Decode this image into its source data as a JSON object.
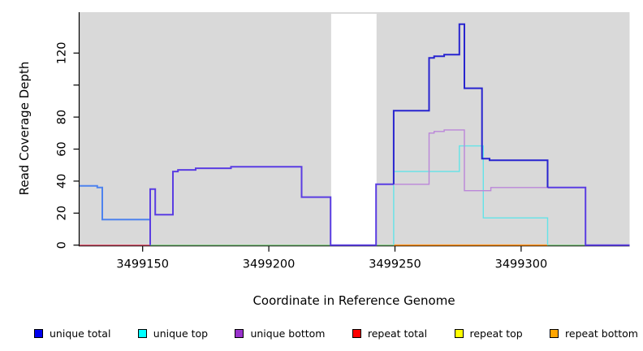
{
  "chart_data": {
    "type": "line",
    "subtype": "step-coverage",
    "title": "",
    "xlabel": "Coordinate in Reference Genome",
    "ylabel": "Read Coverage Depth",
    "xlim": [
      3499125,
      3499343
    ],
    "ylim": [
      0,
      145
    ],
    "grid": "off",
    "plot_bg_color": "#d9d9d9",
    "gap_region": {
      "x0": 3499224.7,
      "x1": 3499242.7,
      "color": "#ffffff"
    },
    "x_ticks": [
      {
        "v": 3499150,
        "label": "3499150"
      },
      {
        "v": 3499200,
        "label": "3499200"
      },
      {
        "v": 3499250,
        "label": "3499250"
      },
      {
        "v": 3499300,
        "label": "3499300"
      }
    ],
    "y_ticks": [
      {
        "v": 0,
        "label": "0"
      },
      {
        "v": 20,
        "label": "20"
      },
      {
        "v": 40,
        "label": "40"
      },
      {
        "v": 60,
        "label": "60"
      },
      {
        "v": 80,
        "label": "80"
      },
      {
        "v": 100,
        "label": ""
      },
      {
        "v": 120,
        "label": "120"
      }
    ],
    "series": [
      {
        "name": "unique total",
        "color": "#0000ee",
        "points": [
          [
            3499125,
            37
          ],
          [
            3499132,
            37
          ],
          [
            3499132,
            36
          ],
          [
            3499134,
            36
          ],
          [
            3499134,
            16
          ],
          [
            3499153,
            16
          ],
          [
            3499153,
            35
          ],
          [
            3499155,
            35
          ],
          [
            3499155,
            19
          ],
          [
            3499162,
            19
          ],
          [
            3499162,
            46
          ],
          [
            3499164,
            46
          ],
          [
            3499164,
            47
          ],
          [
            3499171,
            47
          ],
          [
            3499171,
            48
          ],
          [
            3499185,
            48
          ],
          [
            3499185,
            49
          ],
          [
            3499213,
            49
          ],
          [
            3499213,
            30
          ],
          [
            3499224.5,
            30
          ],
          [
            3499224.5,
            0
          ],
          [
            3499242.5,
            0
          ],
          [
            3499242.5,
            38
          ],
          [
            3499249.5,
            38
          ],
          [
            3499249.5,
            84
          ],
          [
            3499263.5,
            84
          ],
          [
            3499263.5,
            117
          ],
          [
            3499265.5,
            117
          ],
          [
            3499265.5,
            118
          ],
          [
            3499269.5,
            118
          ],
          [
            3499269.5,
            119
          ],
          [
            3499275.5,
            119
          ],
          [
            3499275.5,
            138
          ],
          [
            3499277.5,
            138
          ],
          [
            3499277.5,
            98
          ],
          [
            3499284.5,
            98
          ],
          [
            3499284.5,
            54
          ],
          [
            3499287.5,
            54
          ],
          [
            3499287.5,
            53
          ],
          [
            3499310.5,
            53
          ],
          [
            3499310.5,
            36
          ],
          [
            3499325.5,
            36
          ],
          [
            3499325.5,
            0
          ],
          [
            3499343,
            0
          ]
        ]
      },
      {
        "name": "unique top",
        "color": "#00ffff",
        "points": [
          [
            3499125,
            37
          ],
          [
            3499132,
            37
          ],
          [
            3499132,
            36
          ],
          [
            3499134,
            36
          ],
          [
            3499134,
            16
          ],
          [
            3499153,
            16
          ],
          [
            3499153,
            0
          ],
          [
            3499249.5,
            0
          ],
          [
            3499249.5,
            46
          ],
          [
            3499275.5,
            46
          ],
          [
            3499275.5,
            62
          ],
          [
            3499285,
            62
          ],
          [
            3499285,
            17
          ],
          [
            3499310.5,
            17
          ],
          [
            3499310.5,
            0
          ],
          [
            3499343,
            0
          ]
        ]
      },
      {
        "name": "unique bottom",
        "color": "#9932cc",
        "points": [
          [
            3499125,
            0
          ],
          [
            3499153,
            0
          ],
          [
            3499153,
            35
          ],
          [
            3499155,
            35
          ],
          [
            3499155,
            19
          ],
          [
            3499162,
            19
          ],
          [
            3499162,
            46
          ],
          [
            3499164,
            46
          ],
          [
            3499164,
            47
          ],
          [
            3499171,
            47
          ],
          [
            3499171,
            48
          ],
          [
            3499185,
            48
          ],
          [
            3499185,
            49
          ],
          [
            3499213,
            49
          ],
          [
            3499213,
            30
          ],
          [
            3499224.5,
            30
          ],
          [
            3499224.5,
            0
          ],
          [
            3499242.5,
            0
          ],
          [
            3499242.5,
            38
          ],
          [
            3499263.5,
            38
          ],
          [
            3499263.5,
            70
          ],
          [
            3499265.5,
            70
          ],
          [
            3499265.5,
            71
          ],
          [
            3499269.5,
            71
          ],
          [
            3499269.5,
            72
          ],
          [
            3499277.5,
            72
          ],
          [
            3499277.5,
            34
          ],
          [
            3499288,
            34
          ],
          [
            3499288,
            36
          ],
          [
            3499325.5,
            36
          ],
          [
            3499325.5,
            0
          ],
          [
            3499343,
            0
          ]
        ]
      },
      {
        "name": "repeat total",
        "color": "#ff0000",
        "points": [
          [
            3499125,
            0
          ],
          [
            3499343,
            0
          ]
        ]
      },
      {
        "name": "repeat top",
        "color": "#ffff00",
        "points": [
          [
            3499125,
            0
          ],
          [
            3499343,
            0
          ]
        ]
      },
      {
        "name": "repeat bottom",
        "color": "#ffa500",
        "points": [
          [
            3499125,
            0
          ],
          [
            3499343,
            0
          ]
        ]
      }
    ],
    "rendered_lines": [
      {
        "name": "zero-line-left-repeat-total",
        "color": "#e0566f",
        "width": 1.3,
        "points": [
          [
            3499125,
            0
          ],
          [
            3499153,
            0
          ]
        ]
      },
      {
        "name": "zero-line-mid-green-blend",
        "color": "#86cb86",
        "width": 1.3,
        "points": [
          [
            3499153,
            0
          ],
          [
            3499249.5,
            0
          ]
        ]
      },
      {
        "name": "zero-line-right-green-blend",
        "color": "#86cb86",
        "width": 1.3,
        "points": [
          [
            3499310.5,
            0
          ],
          [
            3499325.5,
            0
          ]
        ]
      },
      {
        "name": "zero-line-repeat-bottom-orange",
        "color": "#ff9015",
        "width": 1.6,
        "points": [
          [
            3499249.5,
            0
          ],
          [
            3499310.5,
            0
          ]
        ]
      },
      {
        "name": "unique-top-drop-left",
        "color": "#63e3e8",
        "width": 1.4,
        "points": [
          [
            3499153,
            16
          ],
          [
            3499153,
            0
          ]
        ]
      },
      {
        "name": "unique-top-cyan",
        "color": "#63e3e8",
        "width": 1.4,
        "points": [
          [
            3499249.5,
            0
          ],
          [
            3499249.5,
            46
          ],
          [
            3499275.5,
            46
          ],
          [
            3499275.5,
            62
          ],
          [
            3499285,
            62
          ],
          [
            3499285,
            17
          ],
          [
            3499310.5,
            17
          ],
          [
            3499310.5,
            0
          ]
        ]
      },
      {
        "name": "unique-bottom-purple",
        "color": "#bb86d9",
        "width": 1.4,
        "points": [
          [
            3499249.5,
            38
          ],
          [
            3499263.5,
            38
          ],
          [
            3499263.5,
            70
          ],
          [
            3499265.5,
            70
          ],
          [
            3499265.5,
            71
          ],
          [
            3499269.5,
            71
          ],
          [
            3499269.5,
            72
          ],
          [
            3499277.5,
            72
          ],
          [
            3499277.5,
            34
          ],
          [
            3499288,
            34
          ],
          [
            3499288,
            36
          ],
          [
            3499310.5,
            36
          ]
        ]
      },
      {
        "name": "total-top-blend-lightblue",
        "color": "#4d82ee",
        "width": 2,
        "points": [
          [
            3499125,
            37
          ],
          [
            3499132,
            37
          ],
          [
            3499132,
            36
          ],
          [
            3499134,
            36
          ],
          [
            3499134,
            16
          ],
          [
            3499153,
            16
          ]
        ]
      },
      {
        "name": "total-bottom-blend-violet-mid",
        "color": "#5a3de2",
        "width": 2,
        "points": [
          [
            3499153,
            0
          ],
          [
            3499153,
            35
          ],
          [
            3499155,
            35
          ],
          [
            3499155,
            19
          ],
          [
            3499162,
            19
          ],
          [
            3499162,
            46
          ],
          [
            3499164,
            46
          ],
          [
            3499164,
            47
          ],
          [
            3499171,
            47
          ],
          [
            3499171,
            48
          ],
          [
            3499185,
            48
          ],
          [
            3499185,
            49
          ],
          [
            3499213,
            49
          ],
          [
            3499213,
            30
          ],
          [
            3499224.5,
            30
          ],
          [
            3499224.5,
            0
          ],
          [
            3499242.5,
            0
          ],
          [
            3499242.5,
            38
          ],
          [
            3499249.5,
            38
          ]
        ]
      },
      {
        "name": "total-bottom-blend-violet-right",
        "color": "#5a3de2",
        "width": 2,
        "points": [
          [
            3499310.5,
            36
          ],
          [
            3499325.5,
            36
          ],
          [
            3499325.5,
            0
          ],
          [
            3499343,
            0
          ]
        ]
      },
      {
        "name": "unique-total-blue",
        "color": "#2824cf",
        "width": 2,
        "points": [
          [
            3499249.5,
            38
          ],
          [
            3499249.5,
            84
          ],
          [
            3499263.5,
            84
          ],
          [
            3499263.5,
            117
          ],
          [
            3499265.5,
            117
          ],
          [
            3499265.5,
            118
          ],
          [
            3499269.5,
            118
          ],
          [
            3499269.5,
            119
          ],
          [
            3499275.5,
            119
          ],
          [
            3499275.5,
            138
          ],
          [
            3499277.5,
            138
          ],
          [
            3499277.5,
            98
          ],
          [
            3499284.5,
            98
          ],
          [
            3499284.5,
            54
          ],
          [
            3499287.5,
            54
          ],
          [
            3499287.5,
            53
          ],
          [
            3499310.5,
            53
          ],
          [
            3499310.5,
            36
          ]
        ]
      }
    ]
  },
  "legend": {
    "items": [
      {
        "label": "unique total",
        "color": "#0000ee"
      },
      {
        "label": "unique top",
        "color": "#00ffff"
      },
      {
        "label": "unique bottom",
        "color": "#9932cc"
      },
      {
        "label": "repeat total",
        "color": "#ff0000"
      },
      {
        "label": "repeat top",
        "color": "#ffff00"
      },
      {
        "label": "repeat bottom",
        "color": "#ffa500"
      }
    ]
  }
}
